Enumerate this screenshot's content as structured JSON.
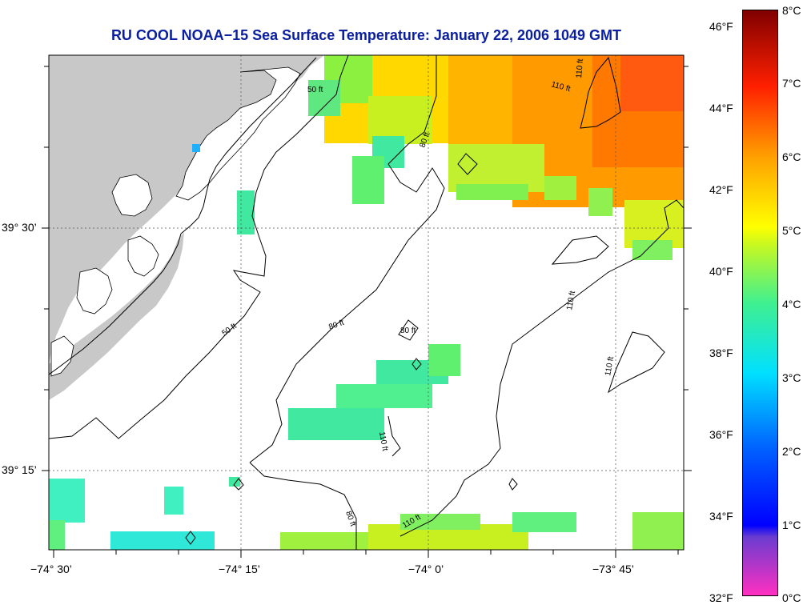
{
  "title": "RU COOL  NOAA−15  Sea Surface Temperature:  January 22, 2006 1049 GMT",
  "longitude_ticks": [
    "−74° 30’",
    "−74° 15’",
    "−74° 0’",
    "−73° 45’"
  ],
  "latitude_ticks": [
    "39° 30’",
    "39° 15’"
  ],
  "depth_contours": [
    "50 ft",
    "80 ft",
    "110 ft"
  ],
  "contour_labels": [
    "50 ft",
    "50 ft",
    "80 ft",
    "80 ft",
    "80 ft",
    "80 ft",
    "110 ft",
    "110 ft",
    "110 ft",
    "110 ft",
    "110 ft",
    "110 ft"
  ],
  "colorbar": {
    "fahrenheit_labels": [
      "46°F",
      "44°F",
      "42°F",
      "40°F",
      "38°F",
      "36°F",
      "34°F",
      "32°F"
    ],
    "celsius_labels": [
      "8°C",
      "7°C",
      "6°C",
      "5°C",
      "4°C",
      "3°C",
      "2°C",
      "1°C",
      "0°C"
    ],
    "range_celsius": [
      0,
      8
    ]
  },
  "colors": {
    "land": "#c8c8c8",
    "title": "#0a1ea0",
    "warm": "#e85010",
    "cold": "#ff30c0"
  }
}
